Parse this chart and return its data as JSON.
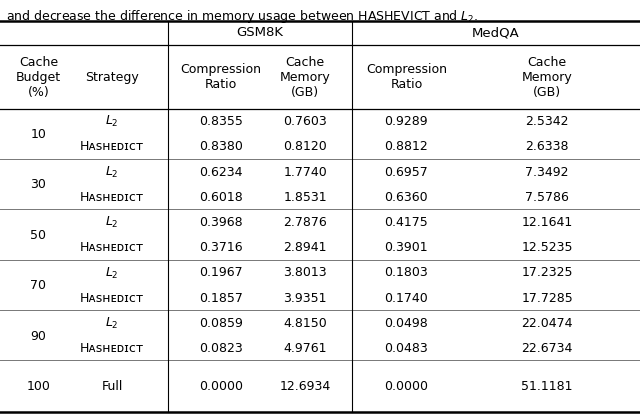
{
  "top_text": "and decrease the difference in memory usage between HASHEVICT and $L_2$.",
  "group_headers": [
    "GSM8K",
    "MedQA"
  ],
  "col_headers": [
    "Cache\nBudget\n(%)",
    "Strategy",
    "Compression\nRatio",
    "Cache\nMemory\n(GB)",
    "Compression\nRatio",
    "Cache\nMemory\n(GB)"
  ],
  "budgets": [
    "10",
    "30",
    "50",
    "70",
    "90",
    "100"
  ],
  "strategies": [
    [
      "$L_2$",
      "HashEvict"
    ],
    [
      "$L_2$",
      "HashEvict"
    ],
    [
      "$L_2$",
      "HashEvict"
    ],
    [
      "$L_2$",
      "HashEvict"
    ],
    [
      "$L_2$",
      "HashEvict"
    ],
    [
      "Full"
    ]
  ],
  "gsm8k_comp": [
    [
      "0.8355",
      "0.8380"
    ],
    [
      "0.6234",
      "0.6018"
    ],
    [
      "0.3968",
      "0.3716"
    ],
    [
      "0.1967",
      "0.1857"
    ],
    [
      "0.0859",
      "0.0823"
    ],
    [
      "0.0000"
    ]
  ],
  "gsm8k_mem": [
    [
      "0.7603",
      "0.8120"
    ],
    [
      "1.7740",
      "1.8531"
    ],
    [
      "2.7876",
      "2.8941"
    ],
    [
      "3.8013",
      "3.9351"
    ],
    [
      "4.8150",
      "4.9761"
    ],
    [
      "12.6934"
    ]
  ],
  "medqa_comp": [
    [
      "0.9289",
      "0.8812"
    ],
    [
      "0.6957",
      "0.6360"
    ],
    [
      "0.4175",
      "0.3901"
    ],
    [
      "0.1803",
      "0.1740"
    ],
    [
      "0.0498",
      "0.0483"
    ],
    [
      "0.0000"
    ]
  ],
  "medqa_mem": [
    [
      "2.5342",
      "2.6338"
    ],
    [
      "7.3492",
      "7.5786"
    ],
    [
      "12.1641",
      "12.5235"
    ],
    [
      "17.2325",
      "17.7285"
    ],
    [
      "22.0474",
      "22.6734"
    ],
    [
      "51.1181"
    ]
  ],
  "bg_color": "#ffffff",
  "text_color": "#000000",
  "fs": 9.0,
  "hfs": 9.5
}
